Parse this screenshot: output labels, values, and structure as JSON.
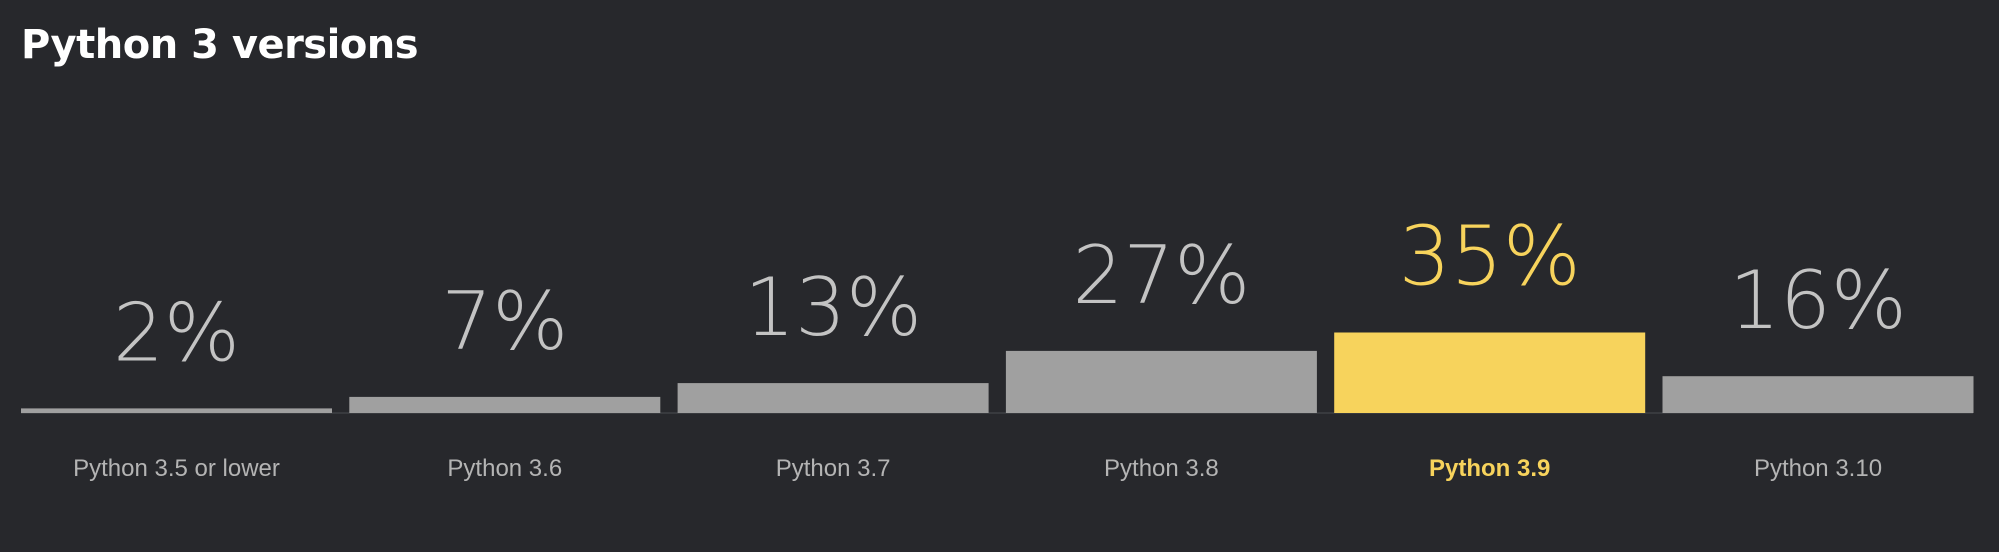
{
  "chart_data": {
    "type": "bar",
    "title": "Python 3 versions",
    "categories": [
      "Python 3.5 or lower",
      "Python 3.6",
      "Python 3.7",
      "Python 3.8",
      "Python 3.9",
      "Python 3.10"
    ],
    "values": [
      2,
      7,
      13,
      27,
      35,
      16
    ],
    "value_labels": [
      "2%",
      "7%",
      "13%",
      "27%",
      "35%",
      "16%"
    ],
    "highlight": "Python 3.9",
    "unit": "%",
    "xlabel": "",
    "ylabel": "",
    "grid": false,
    "legend": "none"
  },
  "colors": {
    "background": "#27282c",
    "bar": "#a0a0a0",
    "bar_highlight": "#f7d35c",
    "label": "#b4b4b4",
    "value_label": "#c3c3c3",
    "baseline": "#4a4b50"
  }
}
